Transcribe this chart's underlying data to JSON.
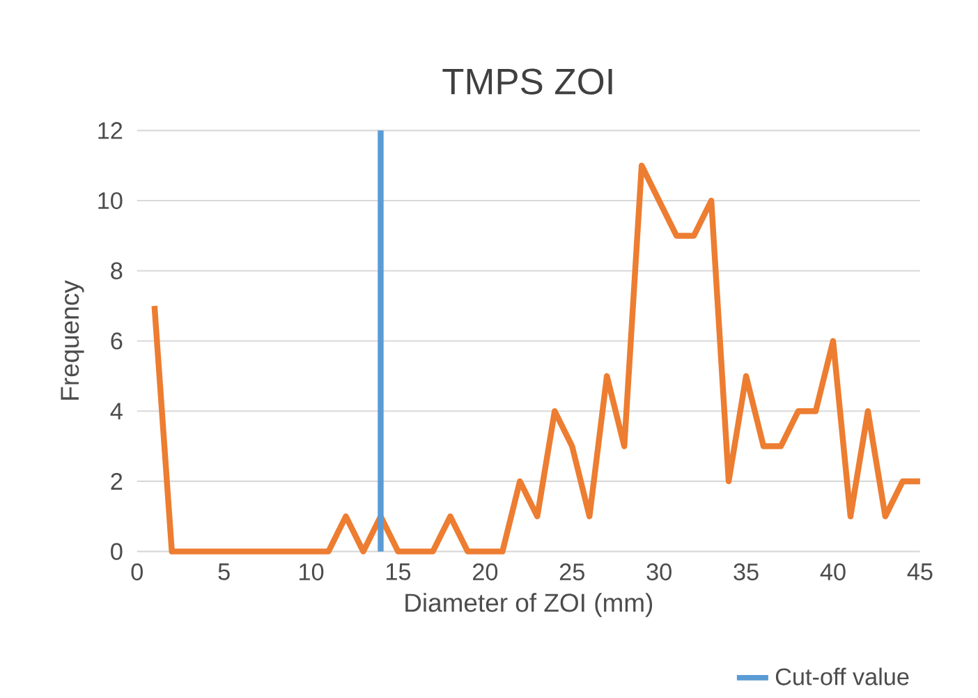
{
  "chart_data": {
    "type": "line",
    "title": "TMPS ZOI",
    "xlabel": "Diameter of ZOI (mm)",
    "ylabel": "Frequency",
    "xlim": [
      0,
      45
    ],
    "ylim": [
      0,
      12
    ],
    "xticks": [
      0,
      5,
      10,
      15,
      20,
      25,
      30,
      35,
      40,
      45
    ],
    "yticks": [
      0,
      2,
      4,
      6,
      8,
      10,
      12
    ],
    "grid": "y",
    "legend": "bottom right",
    "series": [
      {
        "color": "#ed7d31",
        "x": [
          1,
          2,
          3,
          4,
          5,
          6,
          7,
          8,
          9,
          10,
          11,
          12,
          13,
          14,
          15,
          16,
          17,
          18,
          19,
          20,
          21,
          22,
          23,
          24,
          25,
          26,
          27,
          28,
          29,
          30,
          31,
          32,
          33,
          34,
          35,
          36,
          37,
          38,
          39,
          40,
          41,
          42,
          43,
          44,
          45
        ],
        "values": [
          7,
          0,
          0,
          0,
          0,
          0,
          0,
          0,
          0,
          0,
          0,
          1,
          0,
          1,
          0,
          0,
          0,
          1,
          0,
          0,
          0,
          2,
          1,
          4,
          3,
          1,
          5,
          3,
          11,
          10,
          9,
          9,
          10,
          2,
          5,
          3,
          3,
          4,
          4,
          6,
          1,
          4,
          1,
          2,
          2
        ]
      },
      {
        "name": "Cut-off value",
        "color": "#5b9bd5",
        "x": [
          14,
          14
        ],
        "values": [
          0,
          12
        ]
      }
    ]
  }
}
